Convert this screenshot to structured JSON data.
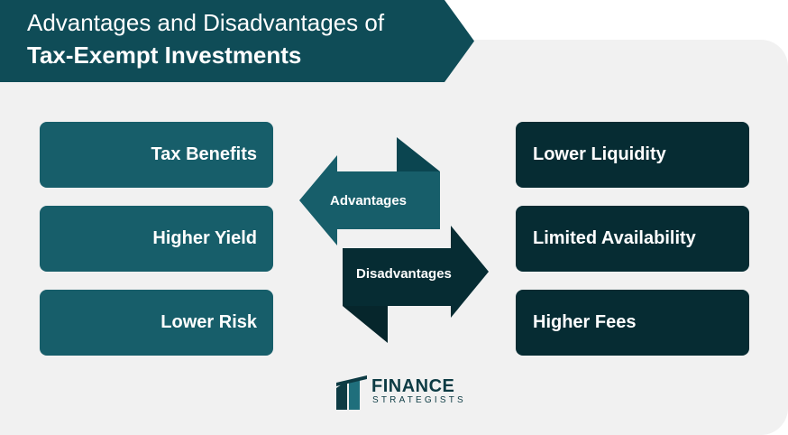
{
  "title": {
    "line1": "Advantages and Disadvantages of",
    "line2": "Tax-Exempt Investments"
  },
  "advantages": {
    "label": "Advantages",
    "items": [
      "Tax Benefits",
      "Higher Yield",
      "Lower Risk"
    ]
  },
  "disadvantages": {
    "label": "Disadvantages",
    "items": [
      "Lower Liquidity",
      "Limited Availability",
      "Higher Fees"
    ]
  },
  "logo": {
    "name": "FINANCE",
    "sub": "STRATEGISTS"
  },
  "colors": {
    "banner": "#0f4c57",
    "advantage": "#175e6a",
    "disadvantage": "#062c33",
    "background": "#f1f1f1"
  }
}
